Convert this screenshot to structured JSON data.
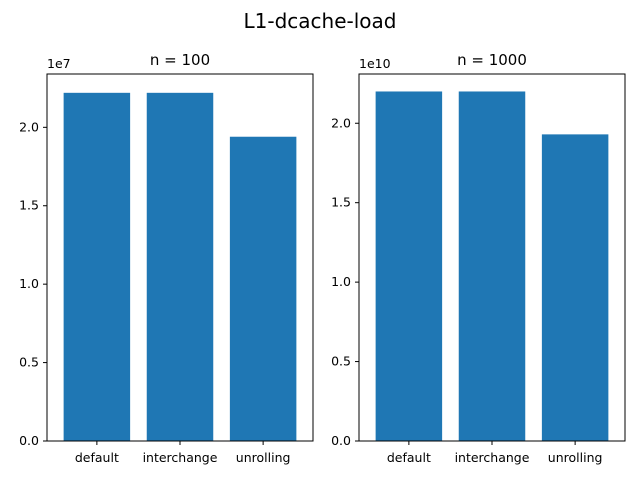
{
  "figure": {
    "suptitle": "L1-dcache-load"
  },
  "chart_data": [
    {
      "type": "bar",
      "title": "n = 100",
      "xlabel": "",
      "ylabel": "",
      "categories": [
        "default",
        "interchange",
        "unrolling"
      ],
      "values": [
        22200000,
        22200000,
        19400000
      ],
      "ylim": [
        0,
        23400000
      ],
      "yticks": [
        0,
        5000000,
        10000000,
        15000000,
        20000000
      ],
      "ytick_labels": [
        "0.0",
        "0.5",
        "1.0",
        "1.5",
        "2.0"
      ],
      "offset_label": "1e7",
      "bar_color": "#1f77b4",
      "grid": false
    },
    {
      "type": "bar",
      "title": "n = 1000",
      "xlabel": "",
      "ylabel": "",
      "categories": [
        "default",
        "interchange",
        "unrolling"
      ],
      "values": [
        22000000000,
        22000000000,
        19300000000
      ],
      "ylim": [
        0,
        23100000000
      ],
      "yticks": [
        0,
        5000000000,
        10000000000,
        15000000000,
        20000000000
      ],
      "ytick_labels": [
        "0.0",
        "0.5",
        "1.0",
        "1.5",
        "2.0"
      ],
      "offset_label": "1e10",
      "bar_color": "#1f77b4",
      "grid": false
    }
  ]
}
